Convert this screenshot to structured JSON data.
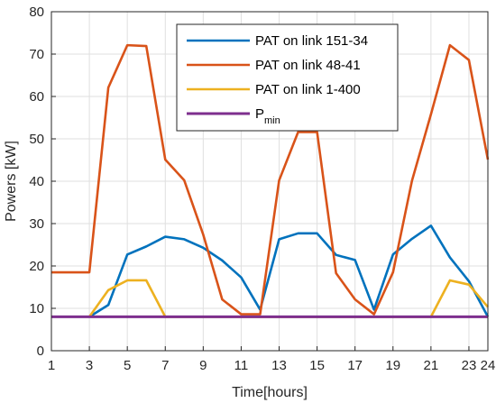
{
  "chart_data": {
    "type": "line",
    "xlabel": "Time[hours]",
    "ylabel": "Powers [kW]",
    "xlim": [
      1,
      24
    ],
    "ylim": [
      0,
      80
    ],
    "xticks": [
      1,
      3,
      5,
      7,
      9,
      11,
      13,
      15,
      17,
      19,
      21,
      23,
      24
    ],
    "xtick_labels": [
      "1",
      "3",
      "5",
      "7",
      "9",
      "11",
      "13",
      "15",
      "17",
      "19",
      "21",
      "23",
      "24"
    ],
    "yticks": [
      0,
      10,
      20,
      30,
      40,
      50,
      60,
      70,
      80
    ],
    "ytick_labels": [
      "0",
      "10",
      "20",
      "30",
      "40",
      "50",
      "60",
      "70",
      "80"
    ],
    "grid": true,
    "legend_position": "top-right",
    "x": [
      1,
      2,
      3,
      4,
      5,
      6,
      7,
      8,
      9,
      10,
      11,
      12,
      13,
      14,
      15,
      16,
      17,
      18,
      19,
      20,
      21,
      22,
      23,
      24
    ],
    "series": [
      {
        "name": "PAT on link 151-34",
        "color": "#0072BD",
        "values": [
          null,
          null,
          8,
          10.8,
          22.7,
          24.6,
          26.9,
          26.3,
          24.3,
          21.3,
          17.3,
          9.7,
          26.3,
          27.7,
          27.7,
          22.6,
          21.4,
          9.7,
          22.7,
          26.4,
          29.5,
          22,
          16.4,
          8
        ]
      },
      {
        "name": "PAT on link 48-41",
        "color": "#D95319",
        "values": [
          18.5,
          18.5,
          18.5,
          62.1,
          72.1,
          71.9,
          45.1,
          40.2,
          27.4,
          12.1,
          8.6,
          8.6,
          40.2,
          51.6,
          51.6,
          18.3,
          12.1,
          8.6,
          18.5,
          40.1,
          55.8,
          72.1,
          68.6,
          45.1
        ]
      },
      {
        "name": "PAT on link 1-400",
        "color": "#EDB120",
        "values": [
          null,
          null,
          8,
          14.3,
          16.6,
          16.6,
          8,
          8,
          8,
          8,
          8,
          8,
          8,
          8,
          8,
          8,
          8,
          8,
          8,
          8,
          8,
          16.6,
          15.6,
          10.3
        ]
      },
      {
        "name": "P_min",
        "color": "#7E2F8E",
        "values": [
          8,
          8,
          8,
          8,
          8,
          8,
          8,
          8,
          8,
          8,
          8,
          8,
          8,
          8,
          8,
          8,
          8,
          8,
          8,
          8,
          8,
          8,
          8,
          8
        ]
      }
    ]
  },
  "legend": {
    "items": [
      {
        "label": "PAT on link 151-34",
        "color": "#0072BD"
      },
      {
        "label": "PAT on link 48-41",
        "color": "#D95319"
      },
      {
        "label": "PAT on link 1-400",
        "color": "#EDB120"
      },
      {
        "label": "P",
        "sub": "min",
        "color": "#7E2F8E"
      }
    ]
  }
}
